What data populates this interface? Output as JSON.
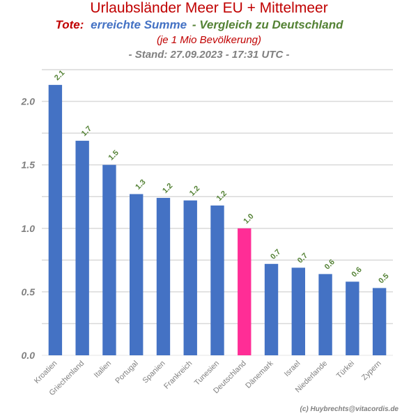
{
  "chart_data": {
    "type": "bar",
    "title": "Urlaubsländer Meer EU + Mittelmeer",
    "subtitle_parts": {
      "tote": "Tote:",
      "summe": "erreichte Summe",
      "vergleich": "- Vergleich zu Deutschland"
    },
    "subtitle2": "(je 1 Mio Bevölkerung)",
    "stand": "- Stand: 27.09.2023 - 17:31 UTC -",
    "credit": "(c) Huybrechts@vitacordis.de",
    "categories": [
      "Kroatien",
      "Griechenland",
      "Italien",
      "Portugal",
      "Spanien",
      "Frankreich",
      "Tunesien",
      "Deutschland",
      "Dänemark",
      "Israel",
      "Niederlande",
      "Türkei",
      "Zypern"
    ],
    "values": [
      2.13,
      1.69,
      1.5,
      1.27,
      1.24,
      1.22,
      1.18,
      1.0,
      0.72,
      0.69,
      0.64,
      0.58,
      0.53
    ],
    "data_labels": [
      "2.1",
      "1.7",
      "1.5",
      "1.3",
      "1.2",
      "1.2",
      "1.2",
      "1.0",
      "0.7",
      "0.7",
      "0.6",
      "0.6",
      "0.5"
    ],
    "highlight_category": "Deutschland",
    "yticks": [
      "0.0",
      "0.5",
      "1.0",
      "1.5",
      "2.0"
    ],
    "ylim": [
      0,
      2.25
    ],
    "grid": true,
    "colors": {
      "bar": "#4472c4",
      "highlight": "#ff2d96",
      "label": "#548235",
      "title": "#c00000",
      "summe": "#4472c4",
      "vergleich": "#548235",
      "stand": "#808080",
      "grid": "#d9d9d9",
      "tick": "#808080"
    }
  }
}
